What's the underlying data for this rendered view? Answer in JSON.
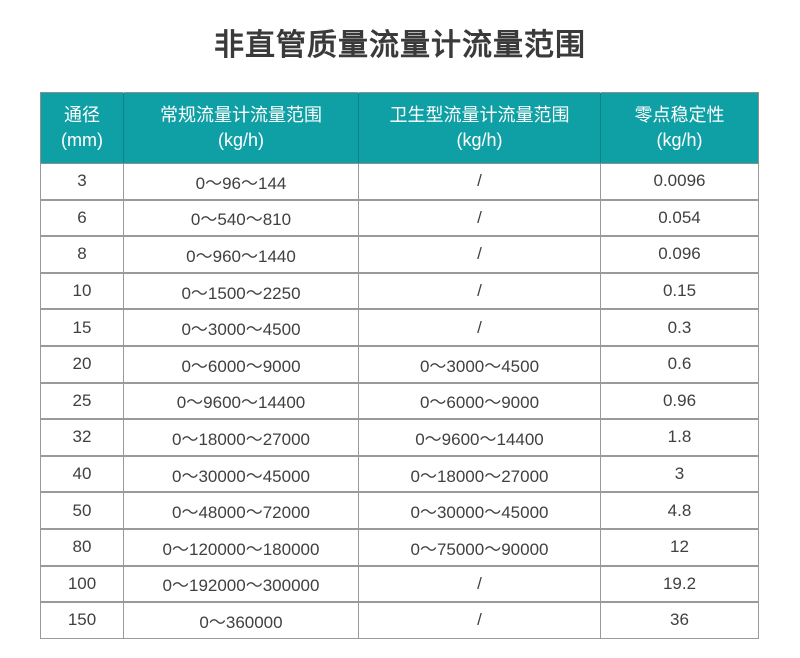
{
  "title": "非直管质量流量计流量范围",
  "colors": {
    "header_bg": "#0fa0a5",
    "header_text": "#ffffff",
    "body_text": "#404040",
    "border": "#9a9a9a",
    "title_text": "#3a3a3a"
  },
  "table": {
    "headers": [
      {
        "line1": "通径",
        "line2": "(mm)"
      },
      {
        "line1": "常规流量计流量范围",
        "line2": "(kg/h)"
      },
      {
        "line1": "卫生型流量计流量范围",
        "line2": "(kg/h)"
      },
      {
        "line1": "零点稳定性",
        "line2": "(kg/h)"
      }
    ],
    "rows": [
      [
        "3",
        "0～96～144",
        "/",
        "0.0096"
      ],
      [
        "6",
        "0～540～810",
        "/",
        "0.054"
      ],
      [
        "8",
        "0～960～1440",
        "/",
        "0.096"
      ],
      [
        "10",
        "0～1500～2250",
        "/",
        "0.15"
      ],
      [
        "15",
        "0～3000～4500",
        "/",
        "0.3"
      ],
      [
        "20",
        "0～6000～9000",
        "0～3000～4500",
        "0.6"
      ],
      [
        "25",
        "0～9600～14400",
        "0～6000～9000",
        "0.96"
      ],
      [
        "32",
        "0～18000～27000",
        "0～9600～14400",
        "1.8"
      ],
      [
        "40",
        "0～30000～45000",
        "0～18000～27000",
        "3"
      ],
      [
        "50",
        "0～48000～72000",
        "0～30000～45000",
        "4.8"
      ],
      [
        "80",
        "0～120000～180000",
        "0～75000～90000",
        "12"
      ],
      [
        "100",
        "0～192000～300000",
        "/",
        "19.2"
      ],
      [
        "150",
        "0～360000",
        "/",
        "36"
      ]
    ]
  }
}
